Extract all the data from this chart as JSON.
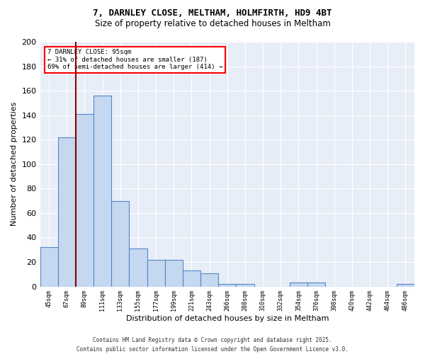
{
  "title_line1": "7, DARNLEY CLOSE, MELTHAM, HOLMFIRTH, HD9 4BT",
  "title_line2": "Size of property relative to detached houses in Meltham",
  "xlabel": "Distribution of detached houses by size in Meltham",
  "ylabel": "Number of detached properties",
  "categories": [
    "45sqm",
    "67sqm",
    "89sqm",
    "111sqm",
    "133sqm",
    "155sqm",
    "177sqm",
    "199sqm",
    "221sqm",
    "243sqm",
    "266sqm",
    "288sqm",
    "310sqm",
    "332sqm",
    "354sqm",
    "376sqm",
    "398sqm",
    "420sqm",
    "442sqm",
    "464sqm",
    "486sqm"
  ],
  "values": [
    32,
    122,
    141,
    156,
    70,
    31,
    22,
    22,
    13,
    11,
    2,
    2,
    0,
    0,
    3,
    3,
    0,
    0,
    0,
    0,
    2
  ],
  "bar_color": "#c5d8f0",
  "bar_edge_color": "#5585c5",
  "background_color": "#e8eef8",
  "grid_color": "#ffffff",
  "vline_x": 1.5,
  "vline_color": "#8b0000",
  "annotation_text_line1": "7 DARNLEY CLOSE: 95sqm",
  "annotation_text_line2": "← 31% of detached houses are smaller (187)",
  "annotation_text_line3": "69% of semi-detached houses are larger (414) →",
  "footnote_line1": "Contains HM Land Registry data © Crown copyright and database right 2025.",
  "footnote_line2": "Contains public sector information licensed under the Open Government Licence v3.0.",
  "ylim": [
    0,
    200
  ],
  "yticks": [
    0,
    20,
    40,
    60,
    80,
    100,
    120,
    140,
    160,
    180,
    200
  ]
}
